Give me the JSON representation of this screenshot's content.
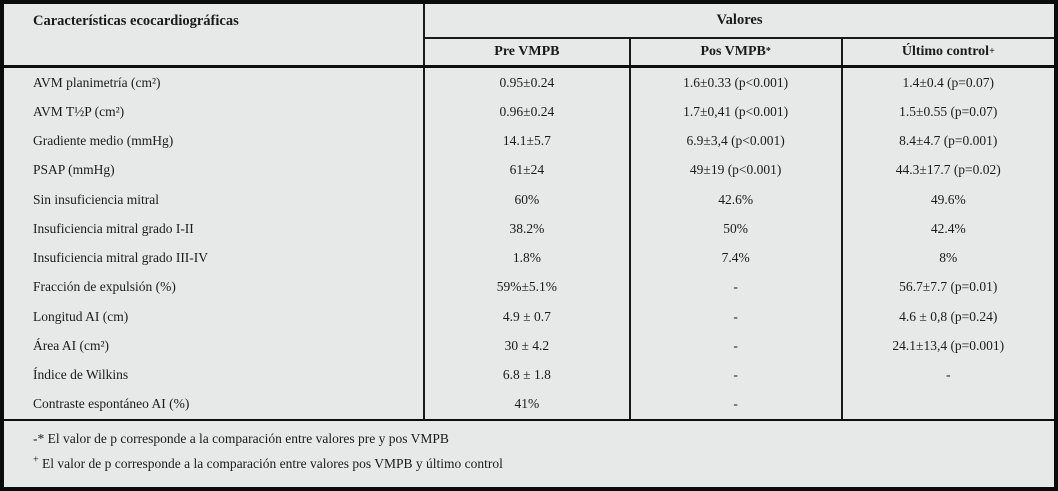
{
  "table": {
    "corner_header": "Características ecocardiográficas",
    "group_header": "Valores",
    "subheaders": [
      {
        "label": "Pre VMPB",
        "sup": ""
      },
      {
        "label": "Pos VMPB ",
        "sup": "*"
      },
      {
        "label": "Último control",
        "sup": "+"
      }
    ],
    "rows": [
      {
        "label": "AVM planimetría (cm²)",
        "pre": "0.95±0.24",
        "pos": "1.6±0.33 (p<0.001)",
        "ultimo": "1.4±0.4  (p=0.07)"
      },
      {
        "label": "AVM T½P (cm²)",
        "pre": "0.96±0.24",
        "pos": "1.7±0,41 (p<0.001)",
        "ultimo": "1.5±0.55 (p=0.07)"
      },
      {
        "label": "Gradiente medio (mmHg)",
        "pre": "14.1±5.7",
        "pos": "6.9±3,4 (p<0.001)",
        "ultimo": "8.4±4.7 (p=0.001)"
      },
      {
        "label": "PSAP (mmHg)",
        "pre": "61±24",
        "pos": "49±19 (p<0.001)",
        "ultimo": "44.3±17.7 (p=0.02)"
      },
      {
        "label": "Sin insuficiencia mitral",
        "pre": "60%",
        "pos": "42.6%",
        "ultimo": "49.6%"
      },
      {
        "label": "Insuficiencia mitral grado I-II",
        "pre": "38.2%",
        "pos": "50%",
        "ultimo": "42.4%"
      },
      {
        "label": "Insuficiencia mitral grado III-IV",
        "pre": "1.8%",
        "pos": "7.4%",
        "ultimo": "8%"
      },
      {
        "label": "Fracción de expulsión (%)",
        "pre": "59%±5.1%",
        "pos": "-",
        "ultimo": "56.7±7.7 (p=0.01)"
      },
      {
        "label": "Longitud AI (cm)",
        "pre": "4.9 ± 0.7",
        "pos": "-",
        "ultimo": "4.6 ± 0,8 (p=0.24)"
      },
      {
        "label": "Área AI (cm²)",
        "pre": "30 ± 4.2",
        "pos": "-",
        "ultimo": "24.1±13,4 (p=0.001)"
      },
      {
        "label": "Índice de Wilkins",
        "pre": "6.8 ± 1.8",
        "pos": "-",
        "ultimo": "-"
      },
      {
        "label": "Contraste espontáneo AI (%)",
        "pre": "41%",
        "pos": "-",
        "ultimo": ""
      }
    ],
    "footnotes": [
      {
        "sup": "",
        "text": "-* El valor de p corresponde a la comparación entre valores pre y pos VMPB"
      },
      {
        "sup": "+",
        "text": " El valor de p corresponde a la comparación entre valores pos VMPB y último control"
      }
    ]
  }
}
